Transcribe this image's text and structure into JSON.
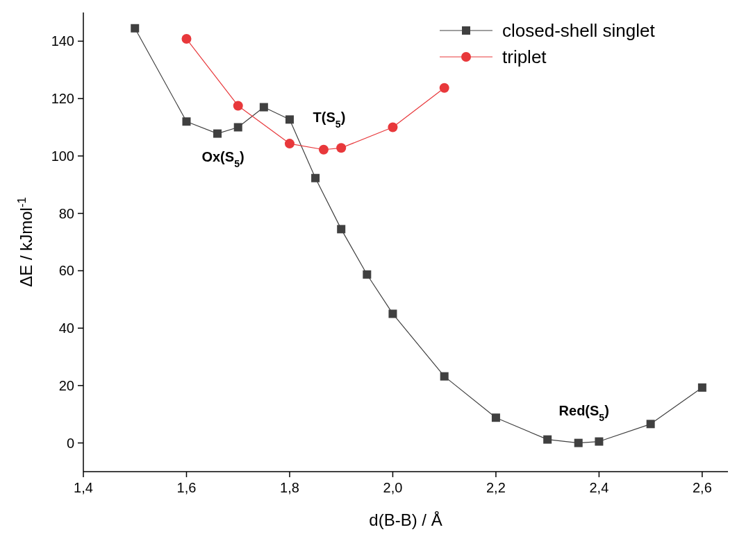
{
  "chart_data": {
    "type": "line",
    "xlabel": "d(B-B) / Å",
    "ylabel": "ΔE / kJmol$^{-1}$",
    "xlim": [
      1.4,
      2.65
    ],
    "ylim": [
      -10,
      150
    ],
    "xticks": [
      {
        "value": 1.4,
        "label": "1,4"
      },
      {
        "value": 1.6,
        "label": "1,6"
      },
      {
        "value": 1.8,
        "label": "1,8"
      },
      {
        "value": 2.0,
        "label": "2,0"
      },
      {
        "value": 2.2,
        "label": "2,2"
      },
      {
        "value": 2.4,
        "label": "2,4"
      },
      {
        "value": 2.6,
        "label": "2,6"
      }
    ],
    "yticks": [
      0,
      20,
      40,
      60,
      80,
      100,
      120,
      140
    ],
    "legend": "top right",
    "grid": false,
    "series": [
      {
        "name": "closed-shell singlet",
        "color": "#404040",
        "marker": "square",
        "x": [
          1.5,
          1.6,
          1.66,
          1.7,
          1.75,
          1.8,
          1.85,
          1.9,
          1.95,
          2.0,
          2.1,
          2.2,
          2.3,
          2.36,
          2.4,
          2.5,
          2.6
        ],
        "values": [
          144.5,
          112,
          107.8,
          110,
          117,
          112.7,
          92.3,
          74.5,
          58.7,
          45,
          23.2,
          8.8,
          1.2,
          0,
          0.5,
          6.6,
          19.3
        ]
      },
      {
        "name": "triplet",
        "color": "#e8383b",
        "marker": "circle",
        "x": [
          1.6,
          1.7,
          1.8,
          1.866,
          1.9,
          2.0,
          2.1
        ],
        "values": [
          140.8,
          117.5,
          104.3,
          102.2,
          102.8,
          110,
          123.7
        ]
      }
    ],
    "annotations": [
      {
        "text": "Ox(S$_{5}$)",
        "x": 1.66,
        "y": 107.8
      },
      {
        "text": "T(S$_{5}$)",
        "x": 1.866,
        "y": 102.2
      },
      {
        "text": "Red(S$_{5}$)",
        "x": 2.36,
        "y": 0
      }
    ]
  }
}
